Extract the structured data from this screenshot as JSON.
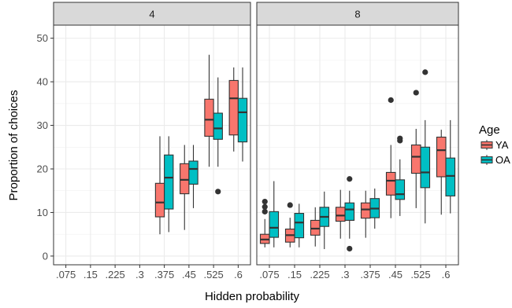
{
  "chart_data": {
    "type": "boxplot",
    "xlabel": "Hidden probability",
    "ylabel": "Proportion of choices",
    "ylim": [
      -2,
      53
    ],
    "yticks": [
      0,
      10,
      20,
      30,
      40,
      50
    ],
    "categories": [
      ".075",
      ".15",
      ".225",
      ".3",
      ".375",
      ".45",
      ".525",
      ".6"
    ],
    "legend": {
      "title": "Age",
      "position": "right",
      "entries": [
        {
          "name": "YA",
          "color": "#F8766D"
        },
        {
          "name": "OA",
          "color": "#00BFC4"
        }
      ]
    },
    "grid": true,
    "panels": [
      {
        "label": "4",
        "series": [
          {
            "name": "YA",
            "boxes": [
              null,
              null,
              null,
              null,
              {
                "cat": ".375",
                "low": 5,
                "q1": 9,
                "median": 12.3,
                "q3": 16.7,
                "high": 27.5,
                "outliers": []
              },
              {
                "cat": ".45",
                "low": 6,
                "q1": 14.3,
                "median": 17.5,
                "q3": 21.2,
                "high": 25.5,
                "outliers": []
              },
              {
                "cat": ".525",
                "low": 20.5,
                "q1": 27.5,
                "median": 31.3,
                "q3": 36,
                "high": 46.2,
                "outliers": []
              },
              {
                "cat": ".6",
                "low": 24,
                "q1": 27.8,
                "median": 36.2,
                "q3": 40.3,
                "high": 43.3,
                "outliers": []
              }
            ]
          },
          {
            "name": "OA",
            "boxes": [
              null,
              null,
              null,
              null,
              {
                "cat": ".375",
                "low": 5.5,
                "q1": 10.8,
                "median": 18,
                "q3": 23.2,
                "high": 27.5,
                "outliers": []
              },
              {
                "cat": ".45",
                "low": 11,
                "q1": 16.5,
                "median": 20,
                "q3": 21.8,
                "high": 25.5,
                "outliers": []
              },
              {
                "cat": ".525",
                "low": 20.5,
                "q1": 26.8,
                "median": 29.3,
                "q3": 32.8,
                "high": 41,
                "outliers": [
                  14.8
                ]
              },
              {
                "cat": ".6",
                "low": 21.7,
                "q1": 26.2,
                "median": 33,
                "q3": 36.2,
                "high": 43.3,
                "outliers": []
              }
            ]
          }
        ]
      },
      {
        "label": "8",
        "series": [
          {
            "name": "YA",
            "boxes": [
              {
                "cat": ".075",
                "low": 2,
                "q1": 2.9,
                "median": 3.8,
                "q3": 5,
                "high": 8.5,
                "outliers": [
                  10.2,
                  11.3,
                  12.5
                ]
              },
              {
                "cat": ".15",
                "low": 2,
                "q1": 3.2,
                "median": 4.8,
                "q3": 6.2,
                "high": 8.8,
                "outliers": [
                  11.7
                ]
              },
              {
                "cat": ".225",
                "low": 2.2,
                "q1": 4.8,
                "median": 6.3,
                "q3": 8.2,
                "high": 11.2,
                "outliers": []
              },
              {
                "cat": ".3",
                "low": 4,
                "q1": 8,
                "median": 9.3,
                "q3": 11.2,
                "high": 15.2,
                "outliers": []
              },
              {
                "cat": ".375",
                "low": 4.2,
                "q1": 8.7,
                "median": 10.7,
                "q3": 12.2,
                "high": 15,
                "outliers": []
              },
              {
                "cat": ".45",
                "low": 8.7,
                "q1": 14,
                "median": 17.3,
                "q3": 19.2,
                "high": 25.5,
                "outliers": [
                  35.8
                ]
              },
              {
                "cat": ".525",
                "low": 11,
                "q1": 19,
                "median": 22.8,
                "q3": 25.5,
                "high": 29.2,
                "outliers": [
                  37.5
                ]
              },
              {
                "cat": ".6",
                "low": 9.5,
                "q1": 18.2,
                "median": 24.3,
                "q3": 27.3,
                "high": 29,
                "outliers": []
              }
            ]
          },
          {
            "name": "OA",
            "boxes": [
              {
                "cat": ".075",
                "low": 2,
                "q1": 4.3,
                "median": 6.5,
                "q3": 10.2,
                "high": 17.2,
                "outliers": []
              },
              {
                "cat": ".15",
                "low": 2,
                "q1": 4.2,
                "median": 7.7,
                "q3": 9.8,
                "high": 12,
                "outliers": []
              },
              {
                "cat": ".225",
                "low": 1.6,
                "q1": 6.8,
                "median": 9,
                "q3": 11.2,
                "high": 14.8,
                "outliers": []
              },
              {
                "cat": ".3",
                "low": 4,
                "q1": 8.2,
                "median": 10.7,
                "q3": 12.2,
                "high": 15,
                "outliers": [
                  17.7,
                  1.7
                ]
              },
              {
                "cat": ".375",
                "low": 6.3,
                "q1": 8.8,
                "median": 10.9,
                "q3": 13.2,
                "high": 15.5,
                "outliers": []
              },
              {
                "cat": ".45",
                "low": 9.2,
                "q1": 13,
                "median": 14.2,
                "q3": 17.5,
                "high": 22.2,
                "outliers": [
                  26.5,
                  27
                ]
              },
              {
                "cat": ".525",
                "low": 7.5,
                "q1": 15.7,
                "median": 19.2,
                "q3": 25,
                "high": 31.2,
                "outliers": [
                  42.2
                ]
              },
              {
                "cat": ".6",
                "low": 9.8,
                "q1": 13.8,
                "median": 18.4,
                "q3": 22.5,
                "high": 31.2,
                "outliers": []
              }
            ]
          }
        ]
      }
    ]
  }
}
